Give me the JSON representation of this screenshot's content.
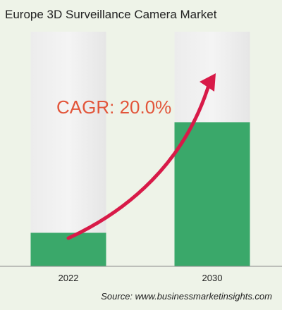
{
  "title": "Europe 3D Surveillance Camera Market",
  "source": "Source: www.businessmarketinsights.com",
  "colors": {
    "background": "#eef3e8",
    "bar_track": "#e8e8e8",
    "bar_fill": "#3aa86a",
    "arrow": "#d81a48",
    "cagr_text": "#e2553a",
    "axis": "#8a8a8a"
  },
  "chart_data": {
    "type": "bar",
    "categories": [
      "2022",
      "2030"
    ],
    "values": [
      1,
      4.3
    ],
    "ylim": [
      0,
      7
    ],
    "annotation": "CAGR: 20.0%",
    "grid": false,
    "legend": "none"
  }
}
